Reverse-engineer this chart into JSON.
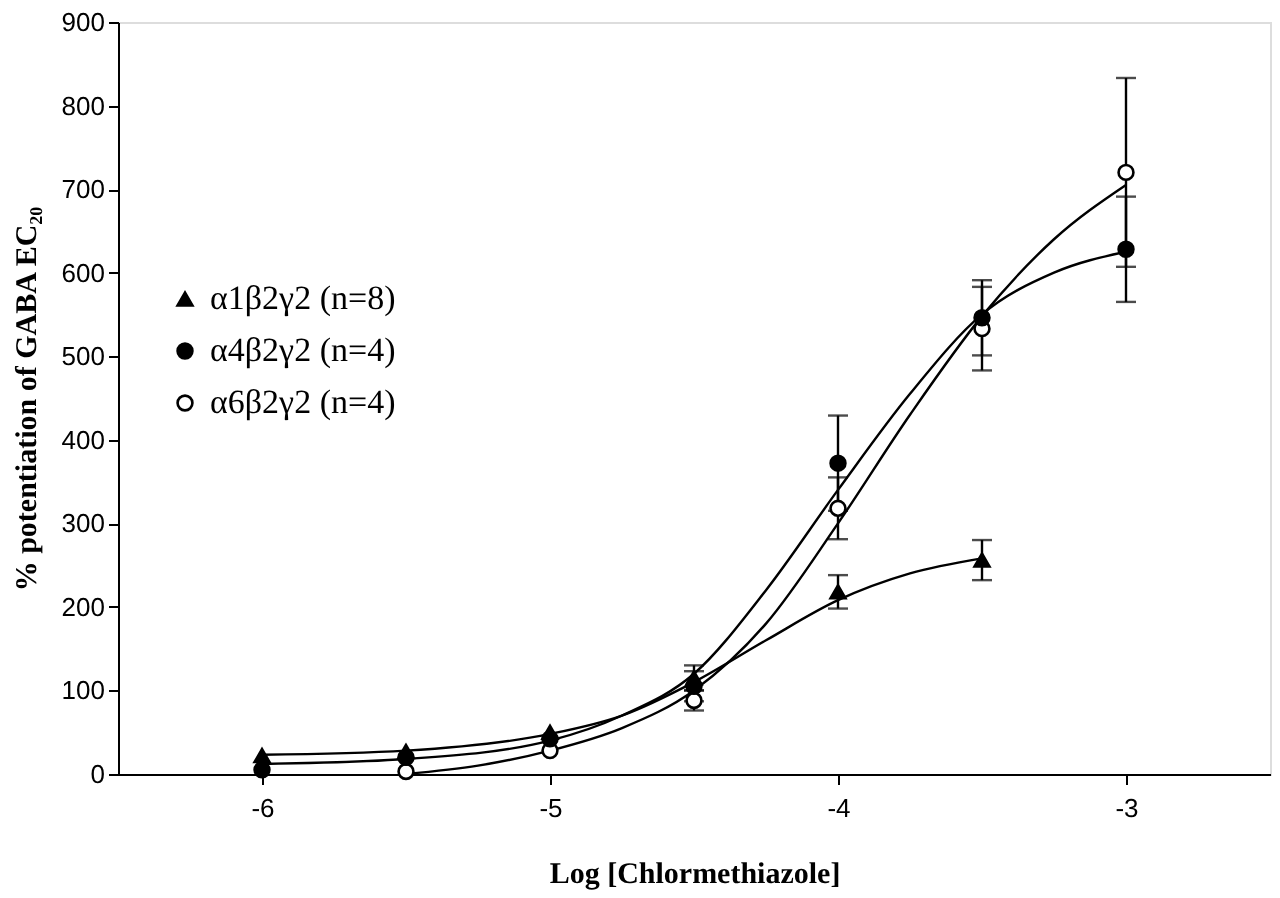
{
  "chart_data": {
    "type": "scatter",
    "xlabel": "Log [Chlormethiazole]",
    "ylabel": "% potentiation of GABA EC₂₀",
    "xlim": [
      -6.5,
      -2.5
    ],
    "xticks": [
      -6,
      -5,
      -4,
      -3
    ],
    "ylim": [
      0,
      900
    ],
    "yticks": [
      0,
      100,
      200,
      300,
      400,
      500,
      600,
      700,
      800,
      900
    ],
    "grid": false,
    "legend": "left",
    "series": [
      {
        "name": "α1β2γ2 (n=8)",
        "marker": "triangle",
        "color": "#000000",
        "x": [
          -6,
          -5.5,
          -5,
          -4.5,
          -4,
          -3.5
        ],
        "values": [
          22,
          27,
          50,
          115,
          218,
          256
        ],
        "errors": [
          null,
          null,
          null,
          15,
          20,
          24
        ]
      },
      {
        "name": "α4β2γ2 (n=4)",
        "marker": "circle",
        "color": "#000000",
        "x": [
          -6,
          -5.5,
          -5,
          -4.5,
          -4,
          -3.5,
          -3
        ],
        "values": [
          5,
          20,
          42,
          105,
          372,
          546,
          628
        ],
        "errors": [
          null,
          null,
          null,
          18,
          57,
          45,
          63
        ]
      },
      {
        "name": "α6β2γ2 (n=4)",
        "marker": "circle",
        "color": "#ffffff",
        "x": [
          -5.5,
          -5,
          -4.5,
          -4,
          -3.5,
          -3
        ],
        "values": [
          3,
          28,
          88,
          318,
          533,
          720
        ],
        "errors": [
          null,
          null,
          12,
          37,
          50,
          113
        ]
      },
      {
        "type": "line",
        "color": "#000000",
        "x": [
          -6,
          -5.5,
          -5,
          -4.75,
          -4.5,
          -4.25,
          -4,
          -3.75,
          -3.5
        ],
        "values": [
          23,
          28,
          48,
          70,
          110,
          160,
          208,
          240,
          258
        ]
      },
      {
        "type": "line",
        "color": "#000000",
        "x": [
          -6,
          -5.5,
          -5,
          -4.75,
          -4.5,
          -4.25,
          -4,
          -3.75,
          -3.5,
          -3.25,
          -3
        ],
        "values": [
          12,
          18,
          40,
          70,
          120,
          220,
          340,
          455,
          550,
          600,
          625
        ]
      },
      {
        "type": "line",
        "color": "#000000",
        "x": [
          -5.5,
          -5.25,
          -5,
          -4.75,
          -4.5,
          -4.25,
          -4,
          -3.75,
          -3.5,
          -3.25,
          -3
        ],
        "values": [
          0,
          10,
          28,
          55,
          100,
          180,
          300,
          430,
          548,
          640,
          705
        ]
      }
    ]
  }
}
